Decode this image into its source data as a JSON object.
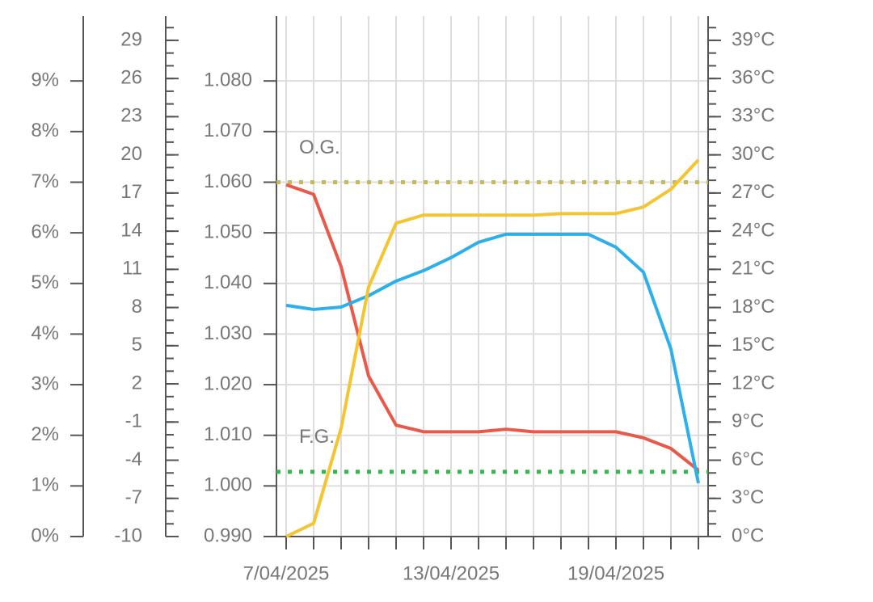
{
  "chart_data": {
    "type": "line",
    "categories": [
      "7/04/2025",
      null,
      null,
      null,
      null,
      null,
      "13/04/2025",
      null,
      null,
      null,
      null,
      null,
      "19/04/2025",
      null,
      null,
      null
    ],
    "series": [
      {
        "color": "#e8594a",
        "axis": "y",
        "values": [
          1.0595,
          1.0576,
          1.0433,
          1.0217,
          1.012,
          1.0107,
          1.0107,
          1.0107,
          1.0112,
          1.0107,
          1.0107,
          1.0107,
          1.0107,
          1.0095,
          1.0074,
          1.0031
        ]
      },
      {
        "color": "#2db0ea",
        "axis": "y2",
        "values": [
          18.17,
          17.85,
          18.04,
          18.93,
          20.08,
          20.9,
          21.92,
          23.13,
          23.76,
          23.76,
          23.76,
          23.76,
          22.74,
          20.78,
          14.74,
          4.19
        ]
      },
      {
        "color": "#f5c431",
        "axis": "y3",
        "values": [
          0,
          0.26,
          2.14,
          4.93,
          6.19,
          6.35,
          6.35,
          6.35,
          6.35,
          6.35,
          6.38,
          6.38,
          6.38,
          6.51,
          6.86,
          7.44
        ]
      }
    ],
    "ylim": [
      0.99,
      1.0928
    ],
    "yticks": [
      {
        "value": 0.99,
        "label": "0.990"
      },
      {
        "value": 1.0,
        "label": "1.000"
      },
      {
        "value": 1.01,
        "label": "1.010"
      },
      {
        "value": 1.02,
        "label": "1.020"
      },
      {
        "value": 1.03,
        "label": "1.030"
      },
      {
        "value": 1.04,
        "label": "1.040"
      },
      {
        "value": 1.05,
        "label": "1.050"
      },
      {
        "value": 1.06,
        "label": "1.060"
      },
      {
        "value": 1.07,
        "label": "1.070"
      },
      {
        "value": 1.08,
        "label": "1.080"
      }
    ],
    "y2lim": [
      0,
      40.9
    ],
    "y2ticks": [
      {
        "value": 0,
        "label": "0°C"
      },
      {
        "value": 3,
        "label": "3°C"
      },
      {
        "value": 6,
        "label": "6°C"
      },
      {
        "value": 9,
        "label": "9°C"
      },
      {
        "value": 12,
        "label": "12°C"
      },
      {
        "value": 15,
        "label": "15°C"
      },
      {
        "value": 18,
        "label": "18°C"
      },
      {
        "value": 21,
        "label": "21°C"
      },
      {
        "value": 24,
        "label": "24°C"
      },
      {
        "value": 27,
        "label": "27°C"
      },
      {
        "value": 30,
        "label": "30°C"
      },
      {
        "value": 33,
        "label": "33°C"
      },
      {
        "value": 36,
        "label": "36°C"
      },
      {
        "value": 39,
        "label": "39°C"
      }
    ],
    "y3lim": [
      0,
      10.28
    ],
    "y3ticks": [
      {
        "value": 0,
        "label": "0%"
      },
      {
        "value": 1,
        "label": "1%"
      },
      {
        "value": 2,
        "label": "2%"
      },
      {
        "value": 3,
        "label": "3%"
      },
      {
        "value": 4,
        "label": "4%"
      },
      {
        "value": 5,
        "label": "5%"
      },
      {
        "value": 6,
        "label": "6%"
      },
      {
        "value": 7,
        "label": "7%"
      },
      {
        "value": 8,
        "label": "8%"
      },
      {
        "value": 9,
        "label": "9%"
      }
    ],
    "y4lim": [
      -10,
      30.9
    ],
    "y4ticks": [
      -10,
      -7,
      -4,
      -1,
      2,
      5,
      8,
      11,
      14,
      17,
      20,
      23,
      26,
      29
    ],
    "reference_lines": [
      {
        "label": "O.G.",
        "value": 1.06,
        "color": "#c9b94e"
      },
      {
        "label": "F.G.",
        "value": 1.0028,
        "color": "#3ab54a"
      }
    ],
    "grid": true
  }
}
